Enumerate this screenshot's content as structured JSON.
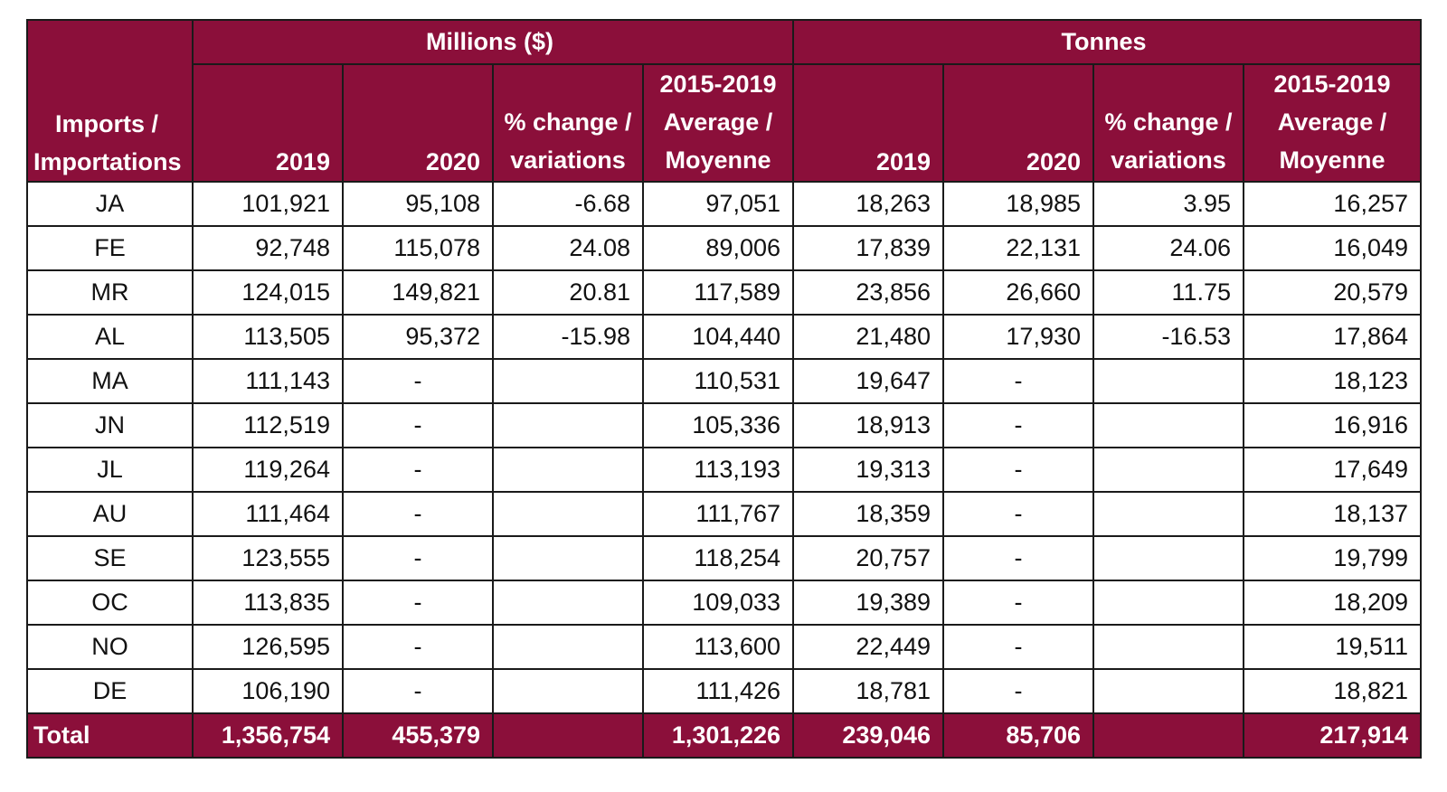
{
  "header": {
    "corner_line1": "Imports /",
    "corner_line2": "Importations",
    "group_value": "Millions ($)",
    "group_volume": "Tonnes",
    "col_2019": "2019",
    "col_2020": "2020",
    "pct_line1": "% change /",
    "pct_line2": "variations",
    "avg_line1": "2015-2019",
    "avg_line2": "Average /",
    "avg_line3": "Moyenne"
  },
  "rows": [
    {
      "month": "JA",
      "v2019": "101,921",
      "v2020": "95,108",
      "vpct": "-6.68",
      "vavg": "97,051",
      "t2019": "18,263",
      "t2020": "18,985",
      "tpct": "3.95",
      "tavg": "16,257"
    },
    {
      "month": "FE",
      "v2019": "92,748",
      "v2020": "115,078",
      "vpct": "24.08",
      "vavg": "89,006",
      "t2019": "17,839",
      "t2020": "22,131",
      "tpct": "24.06",
      "tavg": "16,049"
    },
    {
      "month": "MR",
      "v2019": "124,015",
      "v2020": "149,821",
      "vpct": "20.81",
      "vavg": "117,589",
      "t2019": "23,856",
      "t2020": "26,660",
      "tpct": "11.75",
      "tavg": "20,579"
    },
    {
      "month": "AL",
      "v2019": "113,505",
      "v2020": "95,372",
      "vpct": "-15.98",
      "vavg": "104,440",
      "t2019": "21,480",
      "t2020": "17,930",
      "tpct": "-16.53",
      "tavg": "17,864"
    },
    {
      "month": "MA",
      "v2019": "111,143",
      "v2020": "-",
      "vpct": "",
      "vavg": "110,531",
      "t2019": "19,647",
      "t2020": "-",
      "tpct": "",
      "tavg": "18,123"
    },
    {
      "month": "JN",
      "v2019": "112,519",
      "v2020": "-",
      "vpct": "",
      "vavg": "105,336",
      "t2019": "18,913",
      "t2020": "-",
      "tpct": "",
      "tavg": "16,916"
    },
    {
      "month": "JL",
      "v2019": "119,264",
      "v2020": "-",
      "vpct": "",
      "vavg": "113,193",
      "t2019": "19,313",
      "t2020": "-",
      "tpct": "",
      "tavg": "17,649"
    },
    {
      "month": "AU",
      "v2019": "111,464",
      "v2020": "-",
      "vpct": "",
      "vavg": "111,767",
      "t2019": "18,359",
      "t2020": "-",
      "tpct": "",
      "tavg": "18,137"
    },
    {
      "month": "SE",
      "v2019": "123,555",
      "v2020": "-",
      "vpct": "",
      "vavg": "118,254",
      "t2019": "20,757",
      "t2020": "-",
      "tpct": "",
      "tavg": "19,799"
    },
    {
      "month": "OC",
      "v2019": "113,835",
      "v2020": "-",
      "vpct": "",
      "vavg": "109,033",
      "t2019": "19,389",
      "t2020": "-",
      "tpct": "",
      "tavg": "18,209"
    },
    {
      "month": "NO",
      "v2019": "126,595",
      "v2020": "-",
      "vpct": "",
      "vavg": "113,600",
      "t2019": "22,449",
      "t2020": "-",
      "tpct": "",
      "tavg": "19,511"
    },
    {
      "month": "DE",
      "v2019": "106,190",
      "v2020": "-",
      "vpct": "",
      "vavg": "111,426",
      "t2019": "18,781",
      "t2020": "-",
      "tpct": "",
      "tavg": "18,821"
    }
  ],
  "total": {
    "label": "Total",
    "v2019": "1,356,754",
    "v2020": "455,379",
    "vpct": "",
    "vavg": "1,301,226",
    "t2019": "239,046",
    "t2020": "85,706",
    "tpct": "",
    "tavg": "217,914"
  },
  "colors": {
    "header_bg": "#8b0f3a",
    "header_text": "#ffffff",
    "border": "#1a1a1a"
  }
}
